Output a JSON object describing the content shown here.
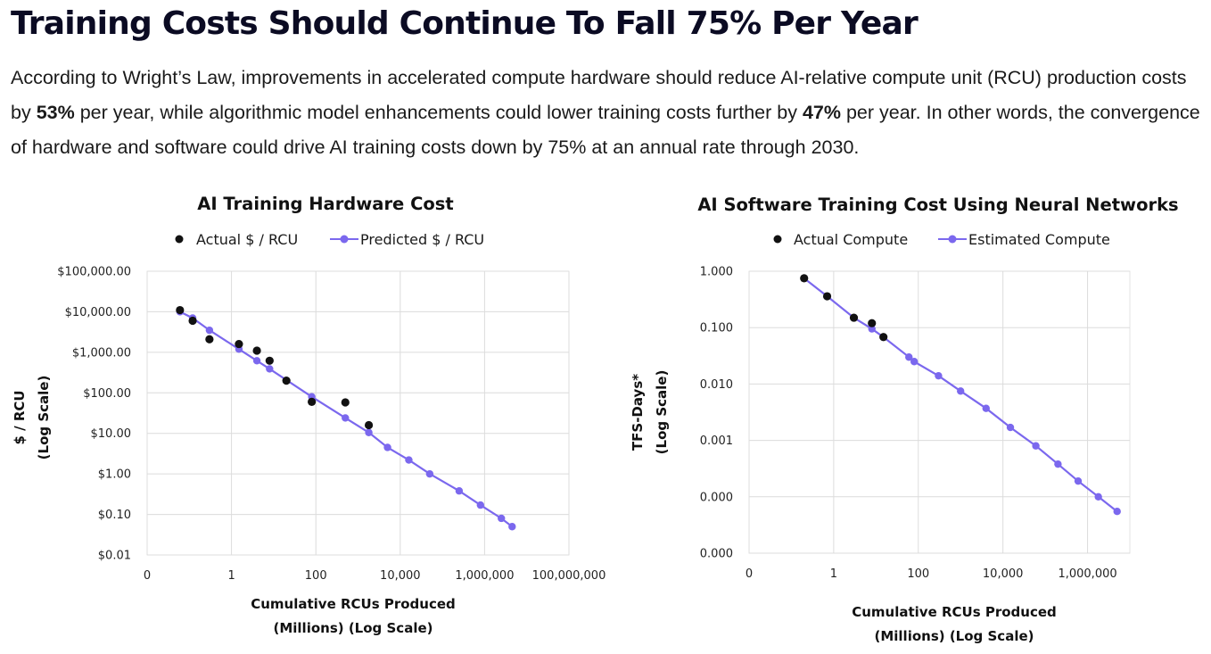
{
  "header": {
    "title": "Training Costs Should Continue To Fall 75% Per Year",
    "desc_p1": "According to Wright’s Law, improvements in accelerated compute hardware should reduce AI-relative compute unit (RCU) production costs by ",
    "desc_b1": "53%",
    "desc_p2": " per year, while algorithmic model enhancements could lower training costs further by ",
    "desc_b2": "47%",
    "desc_p3": " per year. In other words, the convergence of hardware and software could drive AI training costs down by 75% at an annual rate through 2030."
  },
  "colors": {
    "predicted": "#7b68ee",
    "actual": "#111111",
    "grid": "#dcdcdc"
  },
  "chart_data": [
    {
      "type": "scatter",
      "title": "AI Training Hardware Cost",
      "xlabel": "Cumulative RCUs Produced",
      "xlabel2": "(Millions) (Log Scale)",
      "ylabel": "$ / RCU",
      "ylabel2": "(Log Scale)",
      "x_scale": "log",
      "y_scale": "log",
      "xlim": [
        0.01,
        100000000
      ],
      "ylim": [
        0.01,
        100000
      ],
      "x_ticks": [
        0.01,
        1,
        100,
        10000,
        1000000,
        100000000
      ],
      "x_tick_labels": [
        "0",
        "1",
        "100",
        "10,000",
        "1,000,000",
        "100,000,000"
      ],
      "y_ticks": [
        0.01,
        0.1,
        1,
        10,
        100,
        1000,
        10000,
        100000
      ],
      "y_tick_labels": [
        "$0.01",
        "$0.10",
        "$1.00",
        "$10.00",
        "$100.00",
        "$1,000.00",
        "$10,000.00",
        "$100,000.00"
      ],
      "legend_position": "top",
      "series": [
        {
          "name": "Actual $ / RCU",
          "style": "dot",
          "x": [
            0.06,
            0.12,
            0.3,
            1.5,
            4,
            8,
            20,
            80,
            500,
            1800
          ],
          "y": [
            11000,
            6000,
            2100,
            1600,
            1100,
            620,
            200,
            60,
            58,
            16
          ]
        },
        {
          "name": "Predicted $ / RCU",
          "style": "line-marker",
          "x": [
            0.06,
            0.12,
            0.3,
            1.5,
            4,
            8,
            80,
            500,
            1800,
            5000,
            16000,
            50000,
            250000,
            800000,
            2500000,
            4500000
          ],
          "y": [
            10000,
            7000,
            3500,
            1200,
            620,
            390,
            80,
            24,
            10.5,
            4.5,
            2.2,
            1.0,
            0.38,
            0.17,
            0.08,
            0.05
          ]
        }
      ]
    },
    {
      "type": "scatter",
      "title": "AI Software Training Cost Using Neural Networks",
      "xlabel": "Cumulative RCUs Produced",
      "xlabel2": "(Millions) (Log Scale)",
      "ylabel": "TFS-Days*",
      "ylabel2": "(Log Scale)",
      "x_scale": "log",
      "y_scale": "log",
      "xlim": [
        0.01,
        10000000
      ],
      "ylim": [
        1e-05,
        1
      ],
      "x_ticks": [
        0.01,
        1,
        100,
        10000,
        1000000
      ],
      "x_tick_labels": [
        "0",
        "1",
        "100",
        "10,000",
        "1,000,000"
      ],
      "y_ticks": [
        1e-05,
        0.0001,
        0.001,
        0.01,
        0.1,
        1
      ],
      "y_tick_labels": [
        "0.000",
        "0.000",
        "0.001",
        "0.010",
        "0.100",
        "1.000"
      ],
      "legend_position": "top",
      "series": [
        {
          "name": "Actual Compute",
          "style": "dot",
          "x": [
            0.2,
            0.7,
            3,
            8,
            15
          ],
          "y": [
            0.75,
            0.36,
            0.15,
            0.12,
            0.068
          ]
        },
        {
          "name": "Estimated Compute",
          "style": "line-marker",
          "x": [
            0.2,
            0.7,
            3,
            8,
            15,
            60,
            80,
            300,
            1000,
            4000,
            15000,
            60000,
            200000,
            600000,
            1800000,
            5000000
          ],
          "y": [
            0.75,
            0.36,
            0.15,
            0.095,
            0.068,
            0.03,
            0.025,
            0.014,
            0.0075,
            0.0037,
            0.0017,
            0.0008,
            0.00038,
            0.00019,
            0.0001,
            5.5e-05
          ]
        }
      ]
    }
  ]
}
